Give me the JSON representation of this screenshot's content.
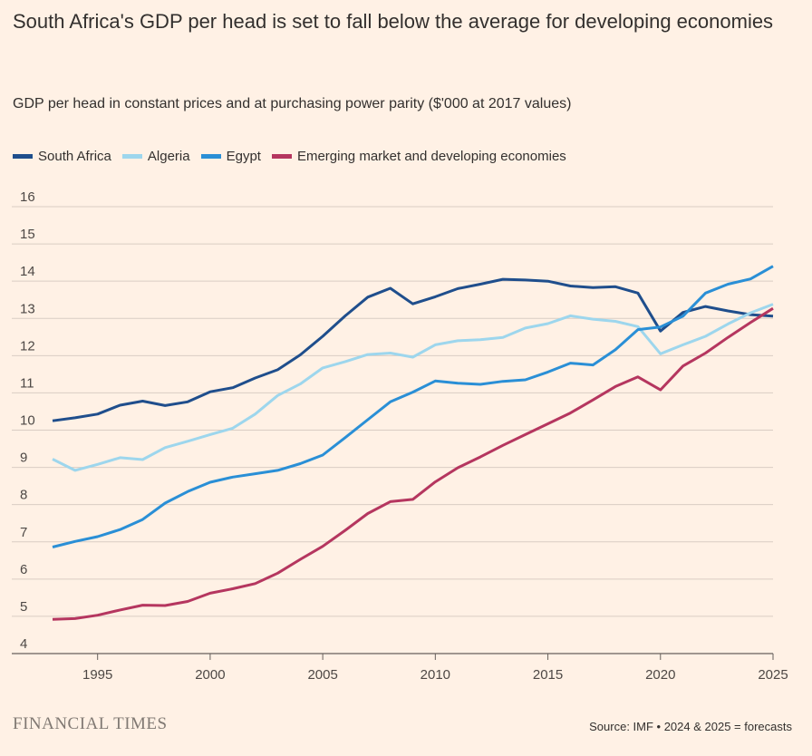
{
  "title": "South Africa's GDP per head is set to fall below the average for developing economies",
  "subtitle": "GDP per head in constant prices and at purchasing power parity ($'000 at 2017 values)",
  "branding": "FINANCIAL TIMES",
  "source": "Source: IMF • 2024 & 2025 = forecasts",
  "chart_data": {
    "type": "line",
    "title": "South Africa's GDP per head is set to fall below the average for developing economies",
    "subtitle": "GDP per head in constant prices and at purchasing power parity ($'000 at 2017 values)",
    "xlabel": "",
    "ylabel": "",
    "xlim": [
      1993,
      2025
    ],
    "ylim": [
      4,
      16
    ],
    "x_ticks": [
      "1995",
      "2000",
      "2005",
      "2010",
      "2015",
      "2020",
      "2025"
    ],
    "y_ticks": [
      "4",
      "5",
      "6",
      "7",
      "8",
      "9",
      "10",
      "11",
      "12",
      "13",
      "14",
      "15",
      "16"
    ],
    "grid": true,
    "legend_position": "top-left",
    "x": [
      1993,
      1994,
      1995,
      1996,
      1997,
      1998,
      1999,
      2000,
      2001,
      2002,
      2003,
      2004,
      2005,
      2006,
      2007,
      2008,
      2009,
      2010,
      2011,
      2012,
      2013,
      2014,
      2015,
      2016,
      2017,
      2018,
      2019,
      2020,
      2021,
      2022,
      2023,
      2024,
      2025
    ],
    "series": [
      {
        "name": "South Africa",
        "color": "#1f4e8c",
        "values": [
          10.25,
          10.33,
          10.43,
          10.67,
          10.78,
          10.66,
          10.76,
          11.03,
          11.14,
          11.4,
          11.62,
          12.02,
          12.52,
          13.07,
          13.57,
          13.81,
          13.39,
          13.58,
          13.8,
          13.92,
          14.05,
          14.03,
          14.0,
          13.87,
          13.83,
          13.85,
          13.68,
          12.66,
          13.16,
          13.32,
          13.2,
          13.1,
          13.06
        ]
      },
      {
        "name": "Algeria",
        "color": "#9dd6ed",
        "values": [
          9.22,
          8.92,
          9.08,
          9.26,
          9.21,
          9.53,
          9.7,
          9.88,
          10.05,
          10.43,
          10.93,
          11.24,
          11.67,
          11.84,
          12.03,
          12.07,
          11.96,
          12.29,
          12.4,
          12.43,
          12.49,
          12.74,
          12.86,
          13.07,
          12.98,
          12.92,
          12.78,
          12.05,
          12.29,
          12.52,
          12.85,
          13.15,
          13.38
        ]
      },
      {
        "name": "Egypt",
        "color": "#2a8fd6",
        "values": [
          6.86,
          7.01,
          7.14,
          7.33,
          7.6,
          8.04,
          8.35,
          8.6,
          8.74,
          8.83,
          8.92,
          9.1,
          9.33,
          9.8,
          10.28,
          10.76,
          11.02,
          11.32,
          11.26,
          11.23,
          11.31,
          11.35,
          11.56,
          11.8,
          11.75,
          12.16,
          12.7,
          12.77,
          13.06,
          13.68,
          13.92,
          14.06,
          14.4
        ]
      },
      {
        "name": "Emerging market and developing economies",
        "color": "#b5365f",
        "values": [
          4.92,
          4.94,
          5.03,
          5.17,
          5.3,
          5.29,
          5.4,
          5.62,
          5.74,
          5.88,
          6.16,
          6.53,
          6.88,
          7.31,
          7.76,
          8.08,
          8.14,
          8.61,
          8.99,
          9.28,
          9.59,
          9.88,
          10.17,
          10.46,
          10.81,
          11.17,
          11.43,
          11.08,
          11.72,
          12.07,
          12.49,
          12.89,
          13.27
        ]
      }
    ]
  }
}
